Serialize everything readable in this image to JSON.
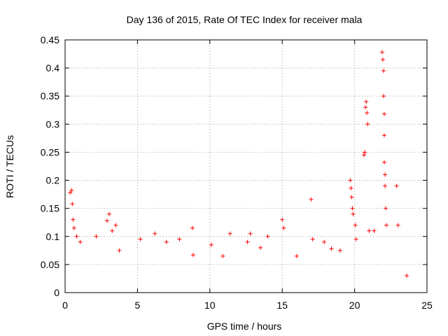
{
  "chart_data": {
    "type": "scatter",
    "title": "Day 136 of 2015, Rate Of TEC Index for receiver mala",
    "xlabel": "GPS time / hours",
    "ylabel": "ROTI / TECUs",
    "xlim": [
      0,
      25
    ],
    "ylim": [
      0,
      0.45
    ],
    "xticks": [
      0,
      5,
      10,
      15,
      20,
      25
    ],
    "yticks": [
      0,
      0.05,
      0.1,
      0.15,
      0.2,
      0.25,
      0.3,
      0.35,
      0.4,
      0.45
    ],
    "grid": true,
    "marker": "+",
    "color": "#ff0000",
    "series": [
      {
        "name": "ROTI",
        "x": [
          0.35,
          0.45,
          0.5,
          0.55,
          0.62,
          0.8,
          1.05,
          2.15,
          2.9,
          3.05,
          3.25,
          3.5,
          3.75,
          5.2,
          6.2,
          7.0,
          7.9,
          8.8,
          8.85,
          10.1,
          10.9,
          11.4,
          12.6,
          12.8,
          13.5,
          14.0,
          15.0,
          15.1,
          16.0,
          17.0,
          17.1,
          17.9,
          18.4,
          19.0,
          19.7,
          19.75,
          19.8,
          19.85,
          19.9,
          20.05,
          20.1,
          20.65,
          20.7,
          20.75,
          20.8,
          20.85,
          20.9,
          21.0,
          21.35,
          21.9,
          21.95,
          22.0,
          22.0,
          22.05,
          22.05,
          22.05,
          22.1,
          22.1,
          22.15,
          22.2,
          22.9,
          23.0,
          23.6
        ],
        "y": [
          0.178,
          0.182,
          0.158,
          0.13,
          0.115,
          0.1,
          0.09,
          0.1,
          0.128,
          0.14,
          0.11,
          0.12,
          0.075,
          0.095,
          0.105,
          0.09,
          0.095,
          0.115,
          0.067,
          0.085,
          0.065,
          0.105,
          0.09,
          0.105,
          0.08,
          0.1,
          0.13,
          0.115,
          0.065,
          0.166,
          0.095,
          0.09,
          0.078,
          0.075,
          0.2,
          0.186,
          0.17,
          0.15,
          0.14,
          0.12,
          0.095,
          0.245,
          0.25,
          0.33,
          0.34,
          0.32,
          0.3,
          0.11,
          0.11,
          0.428,
          0.415,
          0.395,
          0.35,
          0.318,
          0.28,
          0.232,
          0.21,
          0.19,
          0.15,
          0.12,
          0.19,
          0.12,
          0.03
        ]
      }
    ]
  }
}
